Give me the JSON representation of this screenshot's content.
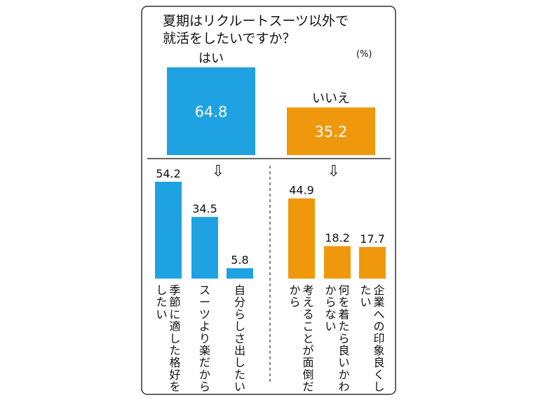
{
  "chart_data": {
    "type": "bar",
    "title": "夏期はリクルートスーツ以外で就活をしたいですか？",
    "title_lines": [
      "夏期はリクルートスーツ以外で",
      "就活をしたいですか？"
    ],
    "unit": "(%)",
    "arrow": "⇩",
    "colors": {
      "yes": "#1ea2e2",
      "no": "#f0980c",
      "border": "#333333"
    },
    "grid": false,
    "top": {
      "categories": [
        "はい",
        "いいえ"
      ],
      "values": [
        64.8,
        35.2
      ],
      "value_labels": [
        "64.8",
        "35.2"
      ]
    },
    "reasons_yes": {
      "categories": [
        "季節に適した格好をしたい",
        "スーツより楽だから",
        "自分らしさ出したい"
      ],
      "values": [
        54.2,
        34.5,
        5.8
      ],
      "value_labels": [
        "54.2",
        "34.5",
        "5.8"
      ]
    },
    "reasons_no": {
      "categories": [
        "考えることが面倒だから",
        "何を着たら良いかわからない",
        "企業への印象良くしたい"
      ],
      "values": [
        44.9,
        18.2,
        17.7
      ],
      "value_labels": [
        "44.9",
        "18.2",
        "17.7"
      ]
    }
  }
}
